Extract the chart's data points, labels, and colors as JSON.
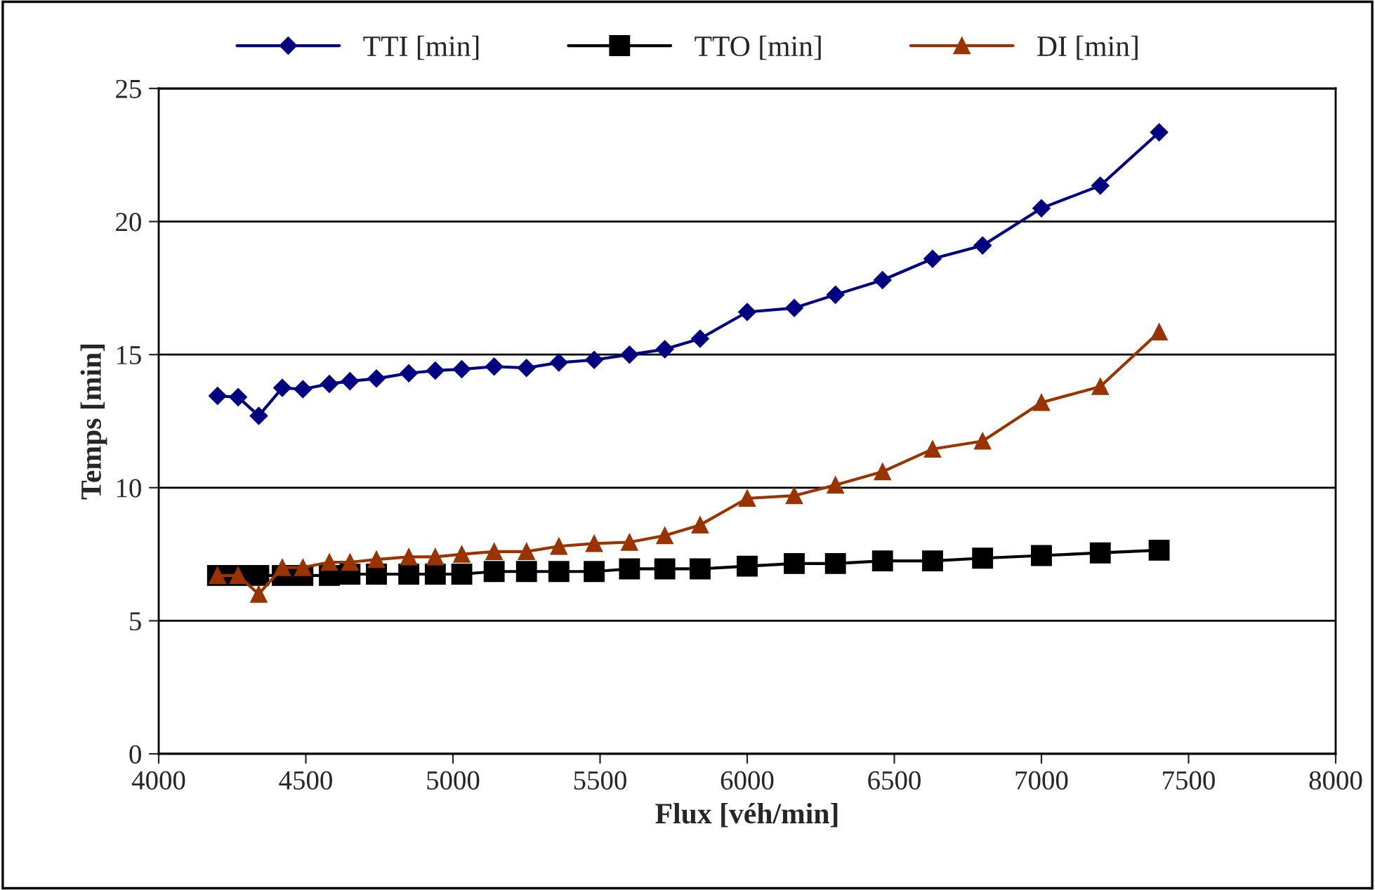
{
  "chart_data": {
    "type": "line",
    "xlabel": "Flux [véh/min]",
    "ylabel": "Temps [min]",
    "x": [
      4200,
      4270,
      4340,
      4420,
      4490,
      4580,
      4650,
      4740,
      4850,
      4940,
      5030,
      5140,
      5250,
      5360,
      5480,
      5600,
      5720,
      5840,
      6000,
      6160,
      6300,
      6460,
      6630,
      6800,
      7000,
      7200,
      7400
    ],
    "series": [
      {
        "name": "TTI [min]",
        "color": "#000080",
        "marker": "diamond",
        "values": [
          13.45,
          13.4,
          12.7,
          13.75,
          13.7,
          13.9,
          14.0,
          14.1,
          14.3,
          14.4,
          14.45,
          14.55,
          14.5,
          14.7,
          14.8,
          15.0,
          15.2,
          15.6,
          16.6,
          16.75,
          17.25,
          17.8,
          18.6,
          19.1,
          20.5,
          21.35,
          23.35
        ]
      },
      {
        "name": "TTO [min]",
        "color": "#000000",
        "marker": "square",
        "values": [
          6.7,
          6.7,
          6.7,
          6.7,
          6.7,
          6.7,
          6.75,
          6.75,
          6.75,
          6.75,
          6.75,
          6.85,
          6.85,
          6.85,
          6.85,
          6.95,
          6.95,
          6.95,
          7.05,
          7.15,
          7.15,
          7.25,
          7.25,
          7.35,
          7.45,
          7.55,
          7.65
        ]
      },
      {
        "name": "DI [min]",
        "color": "#993300",
        "marker": "triangle",
        "values": [
          6.7,
          6.7,
          6.0,
          7.0,
          7.0,
          7.2,
          7.2,
          7.3,
          7.4,
          7.4,
          7.5,
          7.6,
          7.6,
          7.8,
          7.9,
          7.95,
          8.2,
          8.6,
          9.6,
          9.7,
          10.1,
          10.6,
          11.45,
          11.75,
          13.2,
          13.8,
          15.85
        ]
      }
    ],
    "xlim": [
      4000,
      8000
    ],
    "xticks": [
      4000,
      4500,
      5000,
      5500,
      6000,
      6500,
      7000,
      7500,
      8000
    ],
    "ylim": [
      0,
      25
    ],
    "yticks": [
      0,
      5,
      10,
      15,
      20,
      25
    ],
    "grid": "y",
    "legend": "top",
    "line_style": "solid"
  }
}
